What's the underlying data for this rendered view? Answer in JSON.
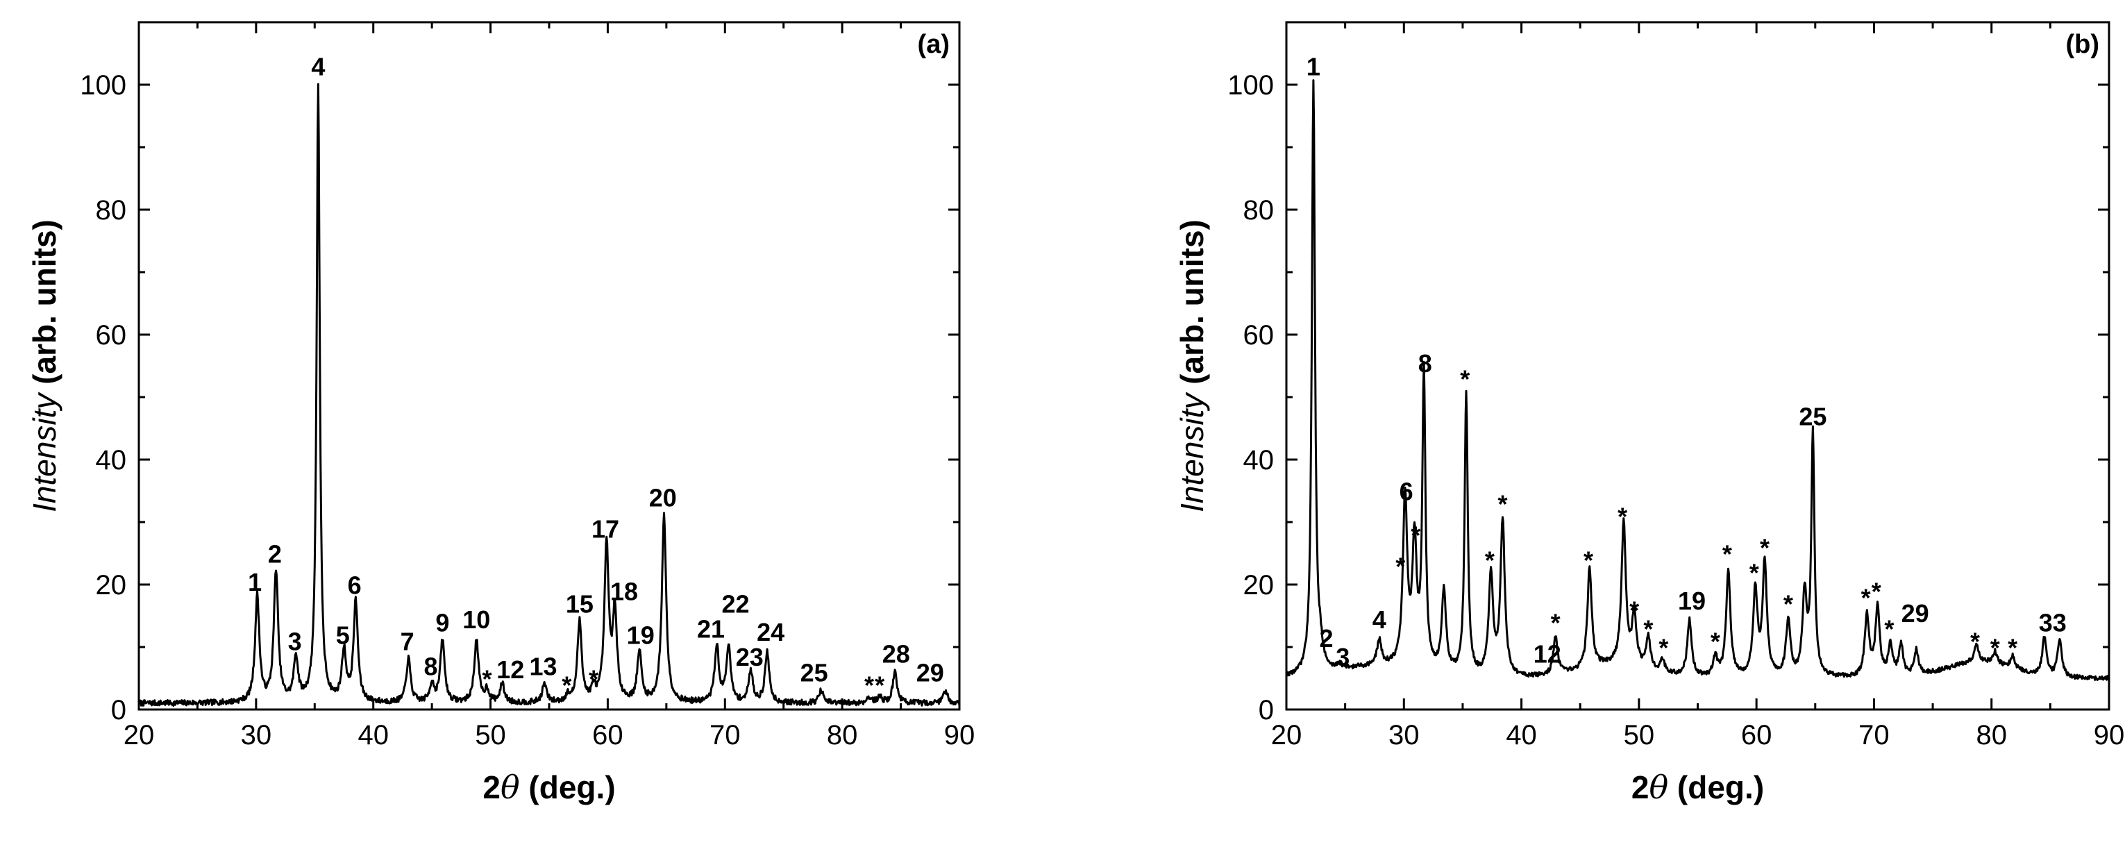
{
  "chart_data": [
    {
      "type": "line",
      "panel_label": "(a)",
      "xlabel_parts": [
        "2",
        "θ",
        " (deg.)"
      ],
      "ylabel_parts": [
        "Intensity",
        " (arb. units)"
      ],
      "xlim": [
        20,
        90
      ],
      "ylim": [
        0,
        110
      ],
      "xticks": [
        20,
        30,
        40,
        50,
        60,
        70,
        80,
        90
      ],
      "yticks": [
        0,
        20,
        40,
        60,
        80,
        100
      ],
      "baseline": 1,
      "peaks": [
        {
          "x": 30.1,
          "y": 18
        },
        {
          "x": 31.7,
          "y": 22
        },
        {
          "x": 33.4,
          "y": 8
        },
        {
          "x": 35.3,
          "y": 100
        },
        {
          "x": 37.5,
          "y": 9
        },
        {
          "x": 38.5,
          "y": 17
        },
        {
          "x": 43.0,
          "y": 8
        },
        {
          "x": 45.0,
          "y": 4
        },
        {
          "x": 45.9,
          "y": 11
        },
        {
          "x": 48.8,
          "y": 11
        },
        {
          "x": 49.7,
          "y": 3
        },
        {
          "x": 51.0,
          "y": 4
        },
        {
          "x": 54.6,
          "y": 4
        },
        {
          "x": 56.6,
          "y": 2
        },
        {
          "x": 57.6,
          "y": 14
        },
        {
          "x": 58.8,
          "y": 3
        },
        {
          "x": 59.9,
          "y": 26
        },
        {
          "x": 60.6,
          "y": 15
        },
        {
          "x": 62.7,
          "y": 9
        },
        {
          "x": 64.8,
          "y": 31
        },
        {
          "x": 69.3,
          "y": 10
        },
        {
          "x": 70.3,
          "y": 10
        },
        {
          "x": 72.2,
          "y": 6
        },
        {
          "x": 73.6,
          "y": 9
        },
        {
          "x": 78.2,
          "y": 3
        },
        {
          "x": 82.3,
          "y": 2
        },
        {
          "x": 83.2,
          "y": 2
        },
        {
          "x": 84.5,
          "y": 6
        },
        {
          "x": 88.8,
          "y": 3
        }
      ],
      "annotations": [
        {
          "text": "1",
          "x": 29.9,
          "y": 19
        },
        {
          "text": "2",
          "x": 31.6,
          "y": 23.5
        },
        {
          "text": "3",
          "x": 33.3,
          "y": 9.5
        },
        {
          "text": "4",
          "x": 35.3,
          "y": 101.5
        },
        {
          "text": "5",
          "x": 37.4,
          "y": 10.5
        },
        {
          "text": "6",
          "x": 38.4,
          "y": 18.5
        },
        {
          "text": "7",
          "x": 42.9,
          "y": 9.5
        },
        {
          "text": "8",
          "x": 44.9,
          "y": 5.5
        },
        {
          "text": "9",
          "x": 45.9,
          "y": 12.5
        },
        {
          "text": "10",
          "x": 48.8,
          "y": 13
        },
        {
          "text": "*",
          "x": 49.7,
          "y": 3.5
        },
        {
          "text": "12",
          "x": 51.7,
          "y": 5
        },
        {
          "text": "13",
          "x": 54.5,
          "y": 5.5
        },
        {
          "text": "*",
          "x": 56.5,
          "y": 2.5
        },
        {
          "text": "15",
          "x": 57.6,
          "y": 15.5
        },
        {
          "text": "*",
          "x": 58.8,
          "y": 3.5
        },
        {
          "text": "17",
          "x": 59.8,
          "y": 27.5
        },
        {
          "text": "18",
          "x": 61.4,
          "y": 17.5
        },
        {
          "text": "19",
          "x": 62.8,
          "y": 10.5
        },
        {
          "text": "20",
          "x": 64.7,
          "y": 32.5
        },
        {
          "text": "21",
          "x": 68.8,
          "y": 11.5
        },
        {
          "text": "22",
          "x": 70.9,
          "y": 15.5
        },
        {
          "text": "23",
          "x": 72.1,
          "y": 7
        },
        {
          "text": "24",
          "x": 73.9,
          "y": 11
        },
        {
          "text": "25",
          "x": 77.6,
          "y": 4.5
        },
        {
          "text": "*",
          "x": 82.3,
          "y": 2.5
        },
        {
          "text": "*",
          "x": 83.2,
          "y": 2.5
        },
        {
          "text": "28",
          "x": 84.6,
          "y": 7.5
        },
        {
          "text": "29",
          "x": 87.5,
          "y": 4.5
        }
      ]
    },
    {
      "type": "line",
      "panel_label": "(b)",
      "xlabel_parts": [
        "2",
        "θ",
        " (deg.)"
      ],
      "ylabel_parts": [
        "Intensity",
        " (arb. units)"
      ],
      "xlim": [
        20,
        90
      ],
      "ylim": [
        0,
        110
      ],
      "xticks": [
        20,
        30,
        40,
        50,
        60,
        70,
        80,
        90
      ],
      "yticks": [
        0,
        20,
        40,
        60,
        80,
        100
      ],
      "baseline": 5,
      "peaks": [
        {
          "x": 22.3,
          "y": 100
        },
        {
          "x": 22.9,
          "y": 8
        },
        {
          "x": 24.5,
          "y": 6
        },
        {
          "x": 27.9,
          "y": 9
        },
        {
          "x": 30.1,
          "y": 32
        },
        {
          "x": 30.9,
          "y": 25
        },
        {
          "x": 31.7,
          "y": 52
        },
        {
          "x": 33.4,
          "y": 18
        },
        {
          "x": 35.3,
          "y": 50
        },
        {
          "x": 37.4,
          "y": 21
        },
        {
          "x": 38.4,
          "y": 30
        },
        {
          "x": 42.9,
          "y": 11
        },
        {
          "x": 45.8,
          "y": 21
        },
        {
          "x": 48.7,
          "y": 28
        },
        {
          "x": 49.6,
          "y": 13
        },
        {
          "x": 50.8,
          "y": 10
        },
        {
          "x": 52.0,
          "y": 7
        },
        {
          "x": 54.3,
          "y": 14
        },
        {
          "x": 56.5,
          "y": 8
        },
        {
          "x": 57.6,
          "y": 22
        },
        {
          "x": 59.9,
          "y": 19
        },
        {
          "x": 60.7,
          "y": 23
        },
        {
          "x": 62.7,
          "y": 14
        },
        {
          "x": 64.1,
          "y": 18
        },
        {
          "x": 64.8,
          "y": 44
        },
        {
          "x": 69.4,
          "y": 15
        },
        {
          "x": 70.3,
          "y": 16
        },
        {
          "x": 71.4,
          "y": 10
        },
        {
          "x": 72.3,
          "y": 10
        },
        {
          "x": 73.6,
          "y": 9
        },
        {
          "x": 78.7,
          "y": 8
        },
        {
          "x": 80.3,
          "y": 7
        },
        {
          "x": 81.8,
          "y": 7
        },
        {
          "x": 84.5,
          "y": 11
        },
        {
          "x": 85.8,
          "y": 11
        }
      ],
      "annotations": [
        {
          "text": "1",
          "x": 22.3,
          "y": 101.5
        },
        {
          "text": "2",
          "x": 23.4,
          "y": 10
        },
        {
          "text": "3",
          "x": 24.8,
          "y": 7
        },
        {
          "text": "4",
          "x": 27.9,
          "y": 13
        },
        {
          "text": "6",
          "x": 30.2,
          "y": 33.5
        },
        {
          "text": "*",
          "x": 29.7,
          "y": 21.5
        },
        {
          "text": "*",
          "x": 31.0,
          "y": 26.5
        },
        {
          "text": "8",
          "x": 31.8,
          "y": 54
        },
        {
          "text": "*",
          "x": 35.2,
          "y": 51.5
        },
        {
          "text": "*",
          "x": 37.3,
          "y": 22.5
        },
        {
          "text": "*",
          "x": 38.4,
          "y": 31.5
        },
        {
          "text": "12",
          "x": 42.2,
          "y": 7.5
        },
        {
          "text": "*",
          "x": 42.9,
          "y": 12.5
        },
        {
          "text": "*",
          "x": 45.7,
          "y": 22.5
        },
        {
          "text": "*",
          "x": 48.6,
          "y": 29.5
        },
        {
          "text": "*",
          "x": 49.6,
          "y": 14.5
        },
        {
          "text": "*",
          "x": 50.8,
          "y": 11.5
        },
        {
          "text": "*",
          "x": 52.1,
          "y": 8.5
        },
        {
          "text": "19",
          "x": 54.5,
          "y": 16
        },
        {
          "text": "*",
          "x": 56.5,
          "y": 9.5
        },
        {
          "text": "*",
          "x": 57.5,
          "y": 23.5
        },
        {
          "text": "*",
          "x": 59.8,
          "y": 20.5
        },
        {
          "text": "*",
          "x": 60.7,
          "y": 24.5
        },
        {
          "text": "*",
          "x": 62.7,
          "y": 15.5
        },
        {
          "text": "25",
          "x": 64.8,
          "y": 45.5
        },
        {
          "text": "*",
          "x": 69.3,
          "y": 16.5
        },
        {
          "text": "*",
          "x": 70.2,
          "y": 17.5
        },
        {
          "text": "*",
          "x": 71.3,
          "y": 11.5
        },
        {
          "text": "29",
          "x": 73.5,
          "y": 14
        },
        {
          "text": "*",
          "x": 78.6,
          "y": 9.5
        },
        {
          "text": "*",
          "x": 80.3,
          "y": 8.5
        },
        {
          "text": "*",
          "x": 81.8,
          "y": 8.5
        },
        {
          "text": "33",
          "x": 85.2,
          "y": 12.5
        }
      ]
    }
  ]
}
